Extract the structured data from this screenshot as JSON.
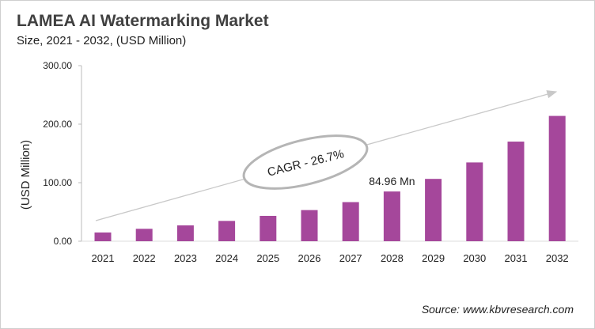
{
  "chart_data": {
    "type": "bar",
    "title": "LAMEA AI Watermarking Market",
    "subtitle": "Size, 2021 - 2032, (USD Million)",
    "ylabel": "(USD Million)",
    "xlabel": "",
    "categories": [
      "2021",
      "2022",
      "2023",
      "2024",
      "2025",
      "2026",
      "2027",
      "2028",
      "2029",
      "2030",
      "2031",
      "2032"
    ],
    "values": [
      14.9,
      21.2,
      27.1,
      34.7,
      43.3,
      53.2,
      66.8,
      84.96,
      106.5,
      134.6,
      170.2,
      214.1
    ],
    "ylim": [
      0,
      300
    ],
    "yticks": [
      "0.00",
      "100.00",
      "200.00",
      "300.00"
    ],
    "grid": false,
    "bar_color": "#a5479b",
    "data_labels": [
      {
        "category": "2028",
        "text": "84.96 Mn"
      }
    ],
    "annotation": "CAGR - 26.7%",
    "source": "Source: www.kbvresearch.com"
  }
}
